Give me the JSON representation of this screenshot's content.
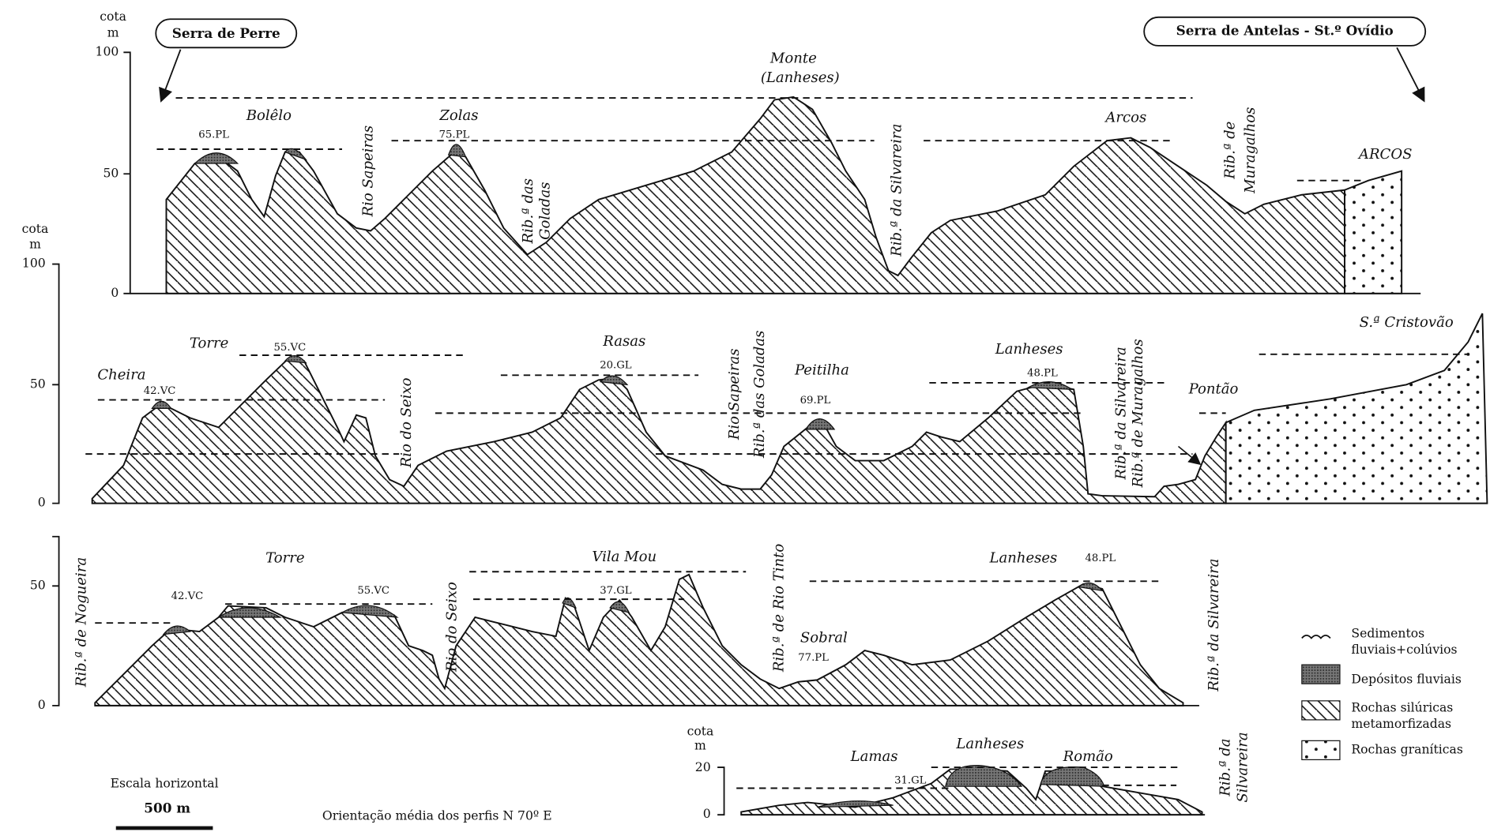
{
  "header": {
    "left": "Serra de Perre",
    "right": "Serra de Antelas - St.º Ovídio"
  },
  "profiles": [
    {
      "unit": [
        "cota",
        "m"
      ],
      "ticks": [
        "100",
        "50",
        "0"
      ],
      "labels": [
        "Bolêlo",
        "65.PL",
        "Zolas",
        "75.PL",
        "Rio Sapeiras",
        "Rib.ª das",
        "Goladas",
        "Monte",
        "(Lanheses)",
        "Rib.ª da Silvareira",
        "Arcos",
        "Rib.ª de",
        "Muragalhos",
        "ARCOS"
      ]
    },
    {
      "unit": [
        "cota",
        "m"
      ],
      "ticks": [
        "100",
        "50",
        "0"
      ],
      "labels": [
        "Cheira",
        "42.VC",
        "Torre",
        "55.VC",
        "Rio do Seixo",
        "Rasas",
        "20.GL",
        "Rio Sapeiras",
        "Rib.ª das Goladas",
        "Peitilha",
        "69.PL",
        "Lanheses",
        "48.PL",
        "Rib.ª da Silvareira",
        "Rib.ª de Muragalhos",
        "Pontão",
        "S.ª Cristovão"
      ]
    },
    {
      "ticks": [
        "50",
        "0"
      ],
      "labels": [
        "Rib.ª de Nogueira",
        "Torre",
        "42.VC",
        "55.VC",
        "Rio do Seixo",
        "Vila Mou",
        "37.GL",
        "Rib.ª de Rio Tinto",
        "Sobral",
        "77.PL",
        "Lanheses",
        "48.PL",
        "Rib.ª da Silvareira"
      ]
    },
    {
      "unit": [
        "cota",
        "m"
      ],
      "ticks": [
        "20",
        "0"
      ],
      "labels": [
        "Lamas",
        "Lanheses",
        "Romão",
        "31.GL",
        "Rib.ª da",
        "Silvareira"
      ]
    }
  ],
  "legend": [
    [
      "Sedimentos",
      "fluviais+colúvios"
    ],
    [
      "Depósitos fluviais"
    ],
    [
      "Rochas silúricas",
      "metamorfizadas"
    ],
    [
      "Rochas graníticas"
    ]
  ],
  "scale": {
    "title": "Escala horizontal",
    "length": "500 m"
  },
  "orientation": "Orientação média dos perfis N 70º E"
}
